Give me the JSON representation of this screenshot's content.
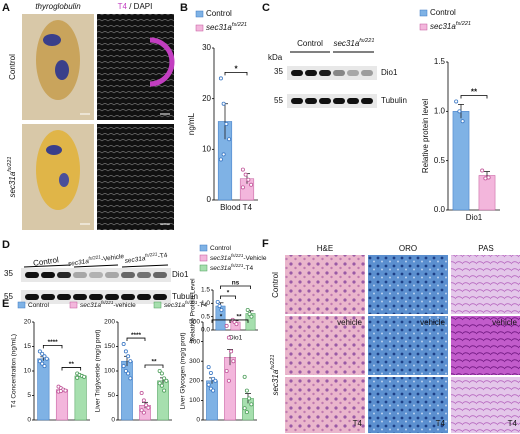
{
  "panel_labels": [
    "A",
    "B",
    "C",
    "D",
    "E",
    "F"
  ],
  "panel_a": {
    "col1": "thyroglobulin",
    "col2_stain": "T4",
    "col2_rest": " / DAPI",
    "row1": "Control",
    "row2_gene": "sec31a",
    "row2_allele": "fs/221"
  },
  "blot_c": {
    "unit": "kDa",
    "markers": [
      "35",
      "55"
    ],
    "group1": "Control",
    "group2_gene": "sec31a",
    "group2_allele": "fs/221",
    "bands": [
      "Dio1",
      "Tubulin"
    ]
  },
  "blot_d": {
    "markers": [
      "35",
      "55"
    ],
    "group1": "Control",
    "group2_gene": "sec31a",
    "group2_allele": "fs/221",
    "group2_suffix": "-Vehicle",
    "group3_gene": "sec31a",
    "group3_allele": "fs/221",
    "group3_suffix": "-T4",
    "bands": [
      "Dio1",
      "Tubulin"
    ]
  },
  "panel_f": {
    "columns": [
      "H&E",
      "ORO",
      "PAS"
    ],
    "row1": "Control",
    "row2_gene": "sec31a",
    "row2_allele": "fs/221",
    "row2_labels": [
      "vehicle",
      "vehicle",
      "vehicle"
    ],
    "row3_labels": [
      "T4",
      "T4",
      "T4"
    ]
  },
  "chart_data": [
    {
      "type": "bar",
      "ylabel": "ng/mL",
      "xlabel": "Blood T4",
      "ylim": [
        0,
        30
      ],
      "yticks": [
        0,
        10,
        20,
        30
      ],
      "legend": true,
      "significance": [
        "*"
      ],
      "series": [
        {
          "name": "Control",
          "color": "#7fb2e5",
          "point_color": "#3b78c4",
          "values": [
            15.5
          ],
          "errors": [
            3.5
          ],
          "points": [
            24,
            19,
            15,
            12,
            8,
            9
          ]
        },
        {
          "name": "sec31a",
          "allele": "fs/221",
          "color": "#f3b6dc",
          "point_color": "#c2579a",
          "values": [
            4.2
          ],
          "errors": [
            1.0
          ],
          "points": [
            6,
            5,
            4,
            3,
            2.5
          ]
        }
      ]
    },
    {
      "type": "bar",
      "ylabel": "Relative protein level",
      "xlabel": "Dio1",
      "ylim": [
        0,
        1.5
      ],
      "yticks": [
        {
          "value": 0,
          "label": "0.0"
        },
        0.5,
        {
          "value": 1,
          "label": "1.0"
        },
        1.5
      ],
      "legend": true,
      "significance": [
        "**"
      ],
      "series": [
        {
          "name": "Control",
          "color": "#7fb2e5",
          "point_color": "#3b78c4",
          "values": [
            1.0
          ],
          "errors": [
            0.07
          ],
          "points": [
            1.1,
            1.0,
            0.9
          ]
        },
        {
          "name": "sec31a",
          "allele": "fs/221",
          "color": "#f3b6dc",
          "point_color": "#c2579a",
          "values": [
            0.35
          ],
          "errors": [
            0.04
          ],
          "points": [
            0.4,
            0.32,
            0.33
          ]
        }
      ]
    },
    {
      "type": "bar",
      "ylabel": "Relative Protein Level",
      "xlabel": "Dio1",
      "ylim": [
        0,
        1.5
      ],
      "yticks": [
        {
          "value": 0,
          "label": "0.0"
        },
        0.5,
        {
          "value": 1,
          "label": "1.0"
        },
        1.5
      ],
      "legend": true,
      "significance": [
        "*",
        "ns"
      ],
      "series": [
        {
          "name": "Control",
          "color": "#7fb2e5",
          "point_color": "#3b78c4",
          "values": [
            0.9
          ],
          "errors": [
            0.12
          ],
          "points": [
            1.05,
            0.9,
            0.75
          ]
        },
        {
          "name": "sec31a",
          "allele": "fs/221",
          "suffix": "-Vehicle",
          "color": "#f3b6dc",
          "point_color": "#c2579a",
          "values": [
            0.3
          ],
          "errors": [
            0.05
          ],
          "points": [
            0.38,
            0.3,
            0.22
          ]
        },
        {
          "name": "sec31a",
          "allele": "fs/221",
          "suffix": "-T4",
          "color": "#a6dfae",
          "point_color": "#4e9e5b",
          "values": [
            0.62
          ],
          "errors": [
            0.1
          ],
          "points": [
            0.75,
            0.6,
            0.5
          ]
        }
      ]
    },
    {
      "type": "bar",
      "ylabel": "T4 Concentration (ng/mL)",
      "ylim": [
        0,
        20
      ],
      "yticks": [
        0,
        5,
        10,
        15,
        20
      ],
      "legend": true,
      "significance": [
        "****",
        "**"
      ],
      "series": [
        {
          "name": "Control",
          "color": "#7fb2e5",
          "point_color": "#3b78c4",
          "values": [
            12.5
          ],
          "errors": [
            0.4
          ],
          "points": [
            14,
            13.5,
            13,
            12.5,
            12,
            11.5,
            11
          ]
        },
        {
          "name": "sec31a",
          "allele": "fs/221",
          "suffix": "-vehicle",
          "color": "#f3b6dc",
          "point_color": "#c2579a",
          "values": [
            6.2
          ],
          "errors": [
            0.2
          ],
          "points": [
            6.8,
            6.5,
            6.2,
            6,
            5.8,
            5.9
          ]
        },
        {
          "name": "sec31a",
          "allele": "fs/221",
          "suffix": "-T4",
          "color": "#a6dfae",
          "point_color": "#4e9e5b",
          "values": [
            9
          ],
          "errors": [
            0.2
          ],
          "points": [
            9.5,
            9.2,
            9,
            8.8,
            8.6
          ]
        }
      ]
    },
    {
      "type": "bar",
      "ylabel": "Liver Triglyceride (mg/g prot)",
      "ylim": [
        0,
        200
      ],
      "yticks": [
        0,
        50,
        100,
        150,
        200
      ],
      "significance": [
        "****",
        "**"
      ],
      "series": [
        {
          "color": "#7fb2e5",
          "point_color": "#3b78c4",
          "values": [
            120
          ],
          "errors": [
            10
          ],
          "points": [
            155,
            140,
            130,
            120,
            110,
            100,
            95,
            85
          ]
        },
        {
          "color": "#f3b6dc",
          "point_color": "#c2579a",
          "values": [
            30
          ],
          "errors": [
            6
          ],
          "points": [
            55,
            40,
            30,
            25,
            20,
            15
          ]
        },
        {
          "color": "#a6dfae",
          "point_color": "#4e9e5b",
          "values": [
            80
          ],
          "errors": [
            6
          ],
          "points": [
            100,
            95,
            85,
            80,
            75,
            70,
            60
          ]
        }
      ]
    },
    {
      "type": "bar",
      "ylabel": "Liver Glycogen (mg/g prot)",
      "ylim": [
        0,
        500
      ],
      "yticks": [
        0,
        100,
        200,
        300,
        400,
        500
      ],
      "significance": [
        "*",
        "**"
      ],
      "series": [
        {
          "color": "#7fb2e5",
          "point_color": "#3b78c4",
          "values": [
            200
          ],
          "errors": [
            15
          ],
          "points": [
            270,
            240,
            210,
            200,
            180,
            160,
            150
          ]
        },
        {
          "color": "#f3b6dc",
          "point_color": "#c2579a",
          "values": [
            320
          ],
          "errors": [
            40
          ],
          "points": [
            480,
            420,
            350,
            300,
            250,
            200
          ]
        },
        {
          "color": "#a6dfae",
          "point_color": "#4e9e5b",
          "values": [
            110
          ],
          "errors": [
            25
          ],
          "points": [
            220,
            150,
            110,
            80,
            60,
            40
          ]
        }
      ]
    }
  ]
}
